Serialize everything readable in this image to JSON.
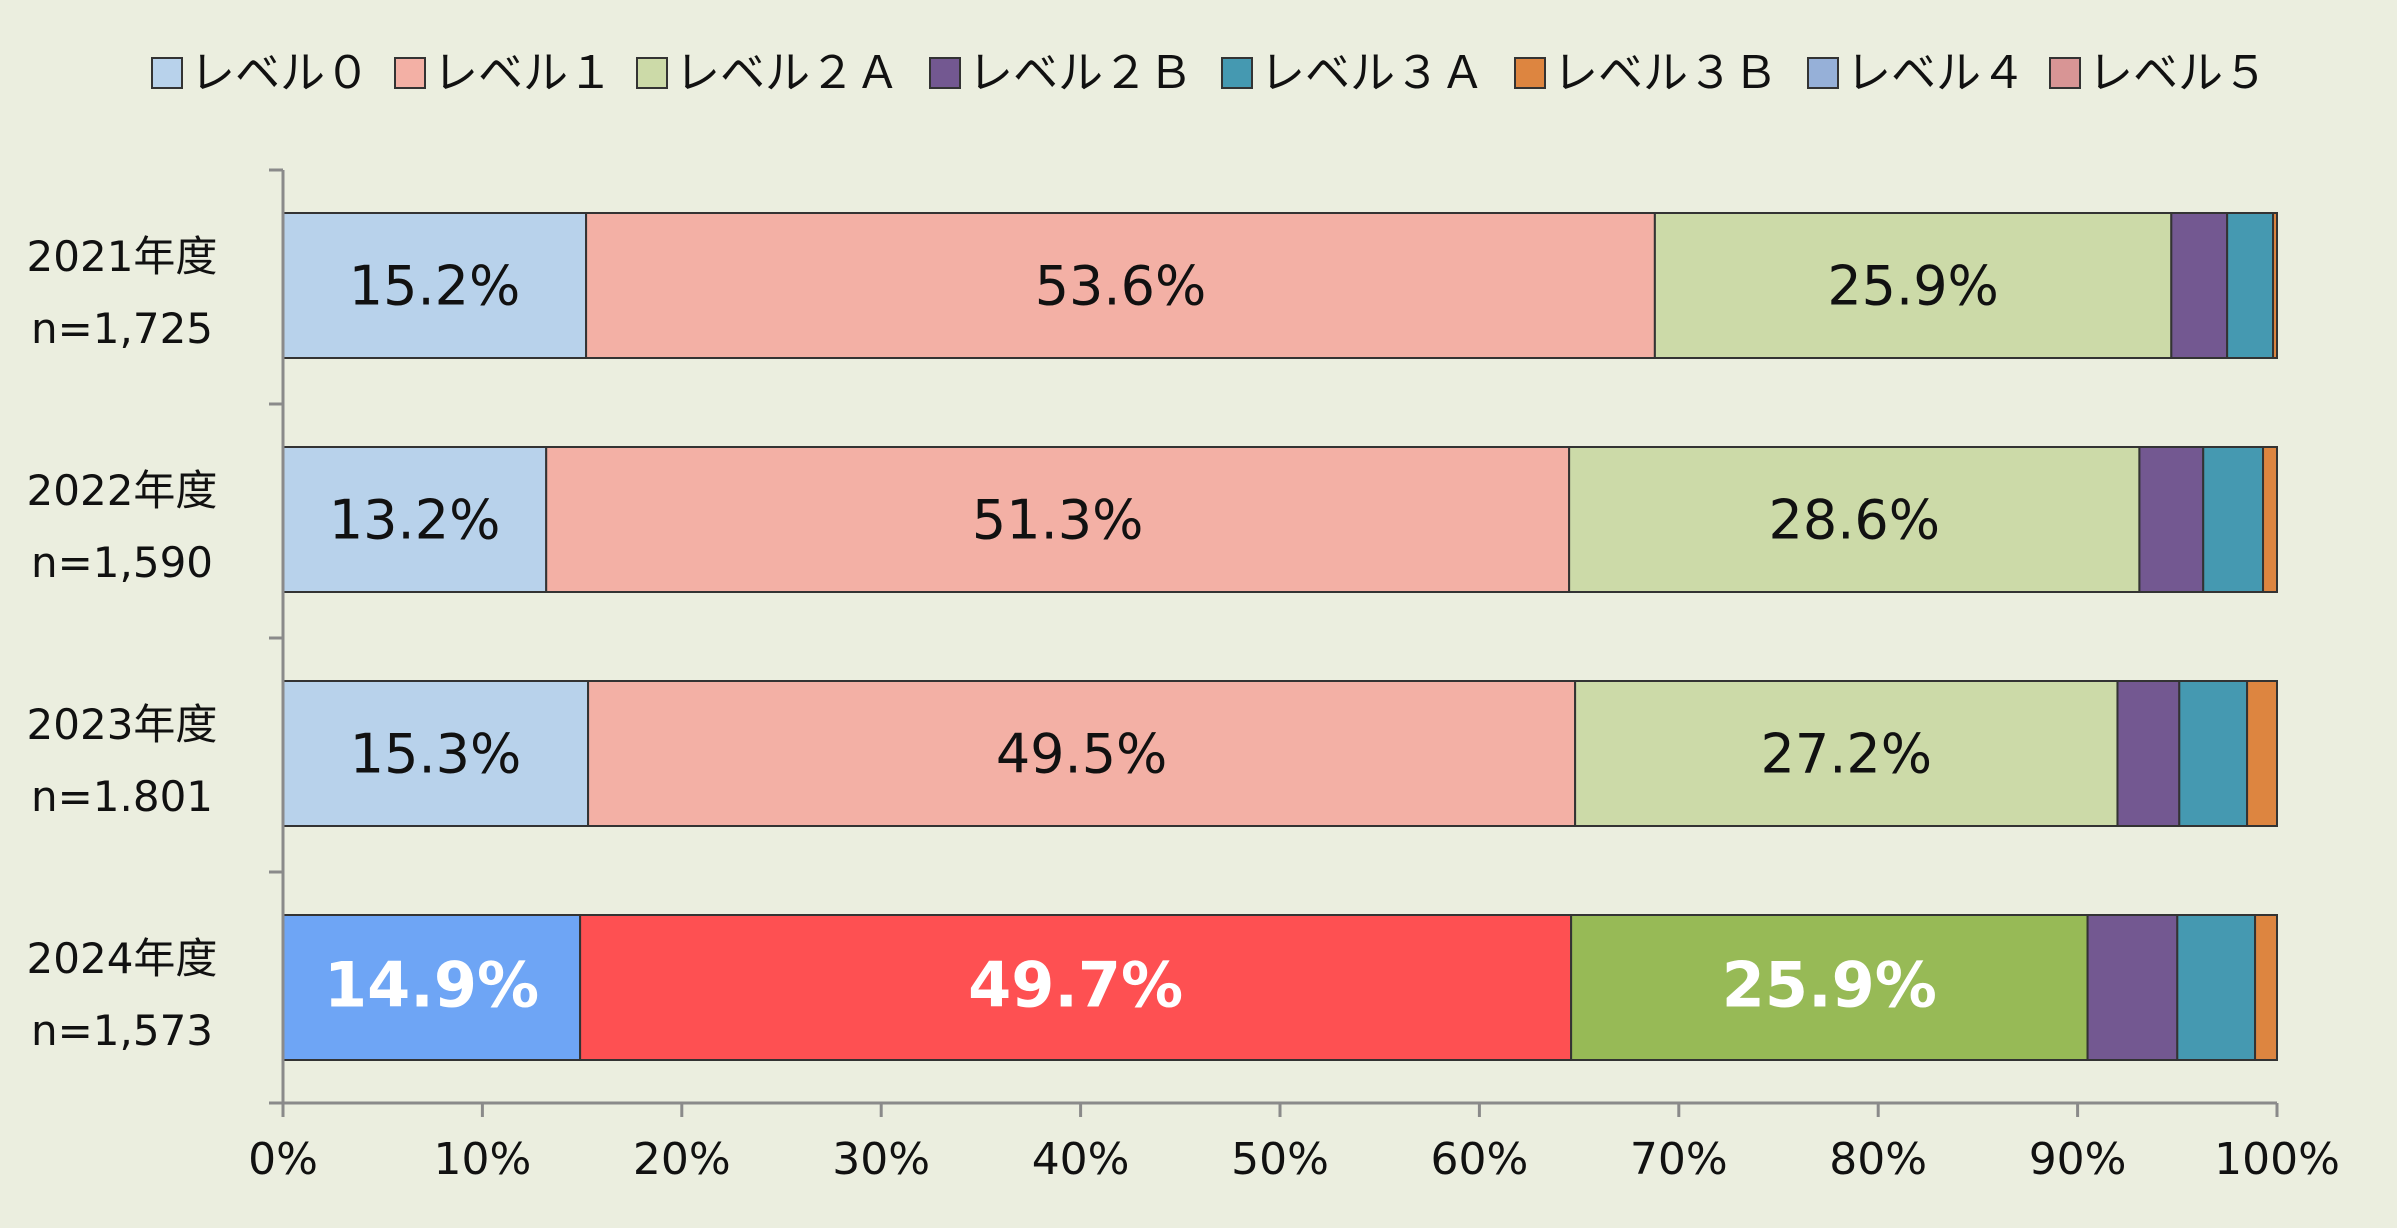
{
  "chart_data": {
    "type": "bar",
    "orientation": "horizontal",
    "stacked": true,
    "percent_stacked": true,
    "legend": {
      "position": "top",
      "entries": [
        "レベル０",
        "レベル１",
        "レベル２Ａ",
        "レベル２Ｂ",
        "レベル３Ａ",
        "レベル３Ｂ",
        "レベル４",
        "レベル５"
      ]
    },
    "categories": [
      {
        "year": "2021年度",
        "n": "n=1,725"
      },
      {
        "year": "2022年度",
        "n": "n=1,590"
      },
      {
        "year": "2023年度",
        "n": "n=1.801"
      },
      {
        "year": "2024年度",
        "n": "n=1,573"
      }
    ],
    "series": [
      {
        "name": "レベル０",
        "values": [
          15.2,
          13.2,
          15.3,
          14.9
        ],
        "color": "#b8d2eb",
        "highlight_color": "#6ea5f5"
      },
      {
        "name": "レベル１",
        "values": [
          53.6,
          51.3,
          49.5,
          49.7
        ],
        "color": "#f3b0a5",
        "highlight_color": "#fe5052"
      },
      {
        "name": "レベル２Ａ",
        "values": [
          25.9,
          28.6,
          27.2,
          25.9
        ],
        "color": "#ccdaa8",
        "highlight_color": "#97ba56"
      },
      {
        "name": "レベル２Ｂ",
        "values": [
          2.8,
          3.2,
          3.1,
          4.5
        ],
        "color": "#735891",
        "highlight_color": "#735891"
      },
      {
        "name": "レベル３Ａ",
        "values": [
          2.3,
          3.0,
          3.4,
          3.9
        ],
        "color": "#4599b1",
        "highlight_color": "#4599b1"
      },
      {
        "name": "レベル３Ｂ",
        "values": [
          0.2,
          0.7,
          1.5,
          1.1
        ],
        "color": "#dd8540",
        "highlight_color": "#dd8540"
      },
      {
        "name": "レベル４",
        "values": [
          0,
          0,
          0,
          0
        ],
        "color": "#96b0d8",
        "highlight_color": "#96b0d8"
      },
      {
        "name": "レベル５",
        "values": [
          0,
          0,
          0,
          0
        ],
        "color": "#d89595",
        "highlight_color": "#d89595"
      }
    ],
    "data_labels": [
      [
        "15.2%",
        "53.6%",
        "25.9%"
      ],
      [
        "13.2%",
        "51.3%",
        "28.6%"
      ],
      [
        "15.3%",
        "49.5%",
        "27.2%"
      ],
      [
        "14.9%",
        "49.7%",
        "25.9%"
      ]
    ],
    "highlighted_category_index": 3,
    "x_ticks": [
      "0%",
      "10%",
      "20%",
      "30%",
      "40%",
      "50%",
      "60%",
      "70%",
      "80%",
      "90%",
      "100%"
    ],
    "xlim": [
      0,
      100
    ],
    "grid": false
  }
}
